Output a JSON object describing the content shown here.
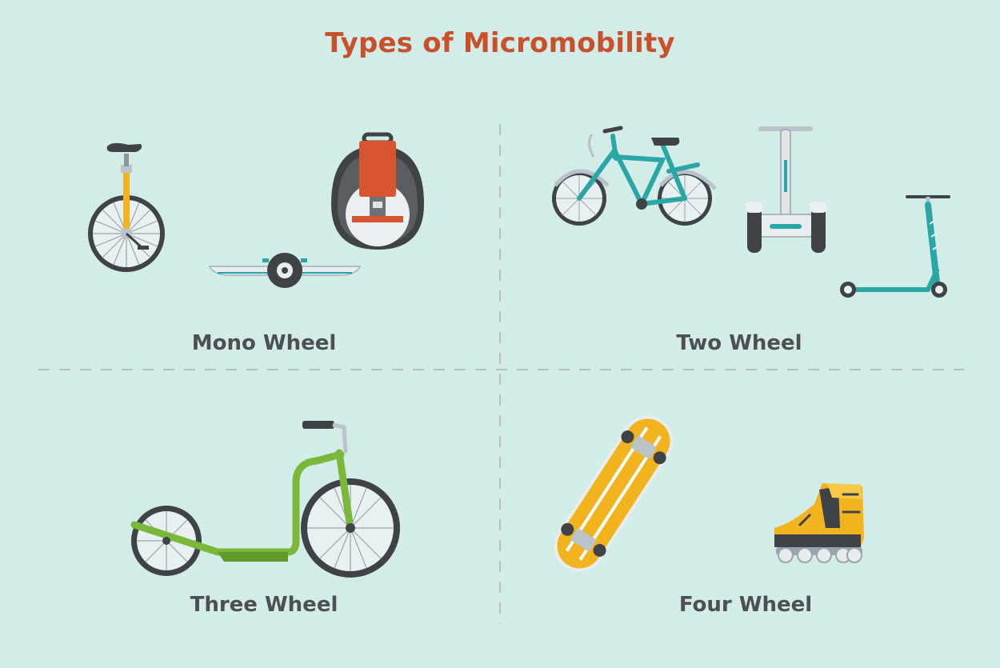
{
  "title": "Types of Micromobility",
  "quadrants": {
    "mono": {
      "label": "Mono Wheel"
    },
    "two": {
      "label": "Two Wheel"
    },
    "three": {
      "label": "Three Wheel"
    },
    "four": {
      "label": "Four Wheel"
    }
  },
  "colors": {
    "background": "#d2ece8",
    "title": "#c8502b",
    "label": "#4d4f55",
    "divider": "#b3c1c0",
    "teal": "#2ba6a6",
    "green": "#7ab83a",
    "yellow": "#f2b41e",
    "orange": "#d95430",
    "dark": "#3f4246"
  }
}
